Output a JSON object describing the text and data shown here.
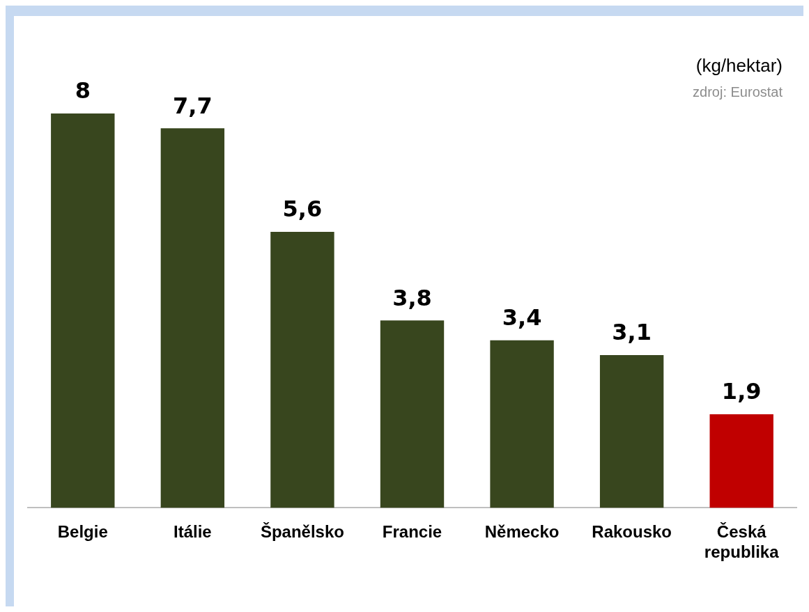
{
  "chart_data": {
    "type": "bar",
    "categories": [
      "Belgie",
      "Itálie",
      "Španělsko",
      "Francie",
      "Německo",
      "Rakousko",
      "Česká republika"
    ],
    "values": [
      8,
      7.7,
      5.6,
      3.8,
      3.4,
      3.1,
      1.9
    ],
    "value_labels": [
      "8",
      "7,7",
      "5,6",
      "3,8",
      "3,4",
      "3,1",
      "1,9"
    ],
    "colors": [
      "#38461e",
      "#38461e",
      "#38461e",
      "#38461e",
      "#38461e",
      "#38461e",
      "#c00000"
    ],
    "annotations": [
      "(kg/hektar)",
      "zdroj: Eurostat"
    ],
    "grid": false,
    "legend": false
  }
}
